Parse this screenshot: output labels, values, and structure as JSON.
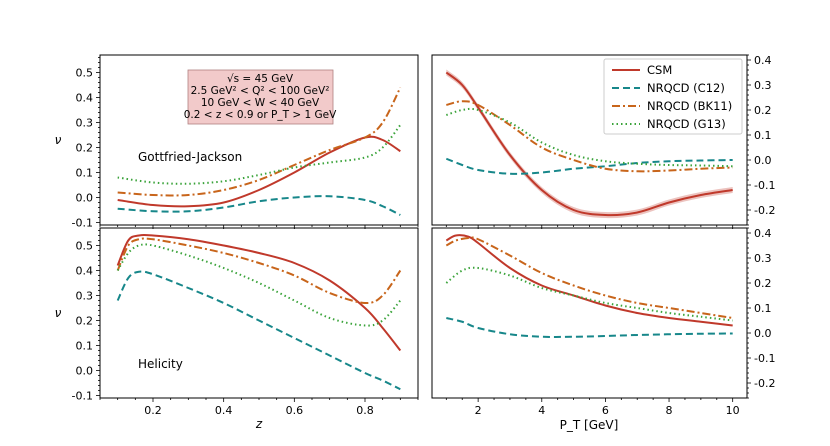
{
  "chart_data": {
    "type": "line",
    "legend": {
      "placement": "top-right",
      "entries": [
        "CSM",
        "NRQCD (C12)",
        "NRQCD (BK11)",
        "NRQCD (G13)"
      ]
    },
    "series_styles": [
      {
        "name": "CSM",
        "color": "#c0392b",
        "dash": "solid"
      },
      {
        "name": "NRQCD (C12)",
        "color": "#17878a",
        "dash": "dashed"
      },
      {
        "name": "NRQCD (BK11)",
        "color": "#c8651b",
        "dash": "dashdot"
      },
      {
        "name": "NRQCD (G13)",
        "color": "#3aa33a",
        "dash": "dotted"
      }
    ],
    "kinematics_box": {
      "lines": [
        "√s = 45 GeV",
        "2.5 GeV² < Q² < 100 GeV²",
        "10 GeV < W < 40 GeV",
        "0.2 < z < 0.9 or P_T > 1 GeV"
      ],
      "background": "#f2caca"
    },
    "panels": [
      {
        "id": "top-left",
        "frame": "Gottfried-Jackson",
        "annotation": "Gottfried-Jackson",
        "xlabel": "",
        "ylabel": "ν",
        "xlim": [
          0.05,
          0.95
        ],
        "ylim": [
          -0.11,
          0.57
        ],
        "xticks": [],
        "yticks": [
          "0.5",
          "0.4",
          "0.3",
          "0.2",
          "0.1",
          "0.0",
          "-0.1"
        ],
        "series": [
          {
            "name": "CSM",
            "x": [
              0.1,
              0.2,
              0.3,
              0.4,
              0.5,
              0.6,
              0.7,
              0.8,
              0.85,
              0.9
            ],
            "y": [
              -0.01,
              -0.03,
              -0.035,
              -0.02,
              0.03,
              0.1,
              0.18,
              0.24,
              0.23,
              0.185
            ]
          },
          {
            "name": "NRQCD (C12)",
            "x": [
              0.1,
              0.2,
              0.3,
              0.4,
              0.5,
              0.6,
              0.7,
              0.8,
              0.85,
              0.9
            ],
            "y": [
              -0.045,
              -0.055,
              -0.055,
              -0.04,
              -0.015,
              0.0,
              0.005,
              -0.01,
              -0.035,
              -0.07
            ]
          },
          {
            "name": "NRQCD (BK11)",
            "x": [
              0.1,
              0.2,
              0.3,
              0.4,
              0.5,
              0.6,
              0.7,
              0.8,
              0.85,
              0.9
            ],
            "y": [
              0.02,
              0.01,
              0.01,
              0.03,
              0.07,
              0.13,
              0.19,
              0.24,
              0.3,
              0.44
            ]
          },
          {
            "name": "NRQCD (G13)",
            "x": [
              0.1,
              0.2,
              0.3,
              0.4,
              0.5,
              0.6,
              0.7,
              0.8,
              0.85,
              0.9
            ],
            "y": [
              0.08,
              0.06,
              0.055,
              0.065,
              0.09,
              0.12,
              0.14,
              0.16,
              0.2,
              0.29
            ]
          }
        ]
      },
      {
        "id": "top-right",
        "frame": "Gottfried-Jackson",
        "xlabel": "",
        "ylabel": "",
        "xlim": [
          0.55,
          10.45
        ],
        "ylim": [
          -0.26,
          0.42
        ],
        "xticks": [],
        "yticks": [
          "0.4",
          "0.3",
          "0.2",
          "0.1",
          "0.0",
          "-0.1",
          "-0.2"
        ],
        "series": [
          {
            "name": "CSM",
            "x": [
              1,
              1.5,
              2,
              3,
              4,
              5,
              6,
              7,
              8,
              9,
              10
            ],
            "y": [
              0.35,
              0.3,
              0.21,
              0.02,
              -0.12,
              -0.2,
              -0.22,
              -0.21,
              -0.17,
              -0.14,
              -0.12
            ]
          },
          {
            "name": "NRQCD (C12)",
            "x": [
              1,
              1.5,
              2,
              3,
              4,
              5,
              6,
              7,
              8,
              9,
              10
            ],
            "y": [
              0.005,
              -0.02,
              -0.04,
              -0.055,
              -0.05,
              -0.035,
              -0.025,
              -0.012,
              -0.005,
              -0.002,
              0.0
            ]
          },
          {
            "name": "NRQCD (BK11)",
            "x": [
              1,
              1.5,
              2,
              3,
              4,
              5,
              6,
              7,
              8,
              9,
              10
            ],
            "y": [
              0.22,
              0.235,
              0.22,
              0.14,
              0.05,
              0.0,
              -0.035,
              -0.045,
              -0.042,
              -0.035,
              -0.03
            ]
          },
          {
            "name": "NRQCD (G13)",
            "x": [
              1,
              1.5,
              2,
              3,
              4,
              5,
              6,
              7,
              8,
              9,
              10
            ],
            "y": [
              0.18,
              0.2,
              0.2,
              0.15,
              0.07,
              0.02,
              -0.005,
              -0.015,
              -0.02,
              -0.022,
              -0.025
            ]
          }
        ]
      },
      {
        "id": "bottom-left",
        "frame": "Helicity",
        "annotation": "Helicity",
        "xlabel": "z",
        "ylabel": "ν",
        "xlim": [
          0.05,
          0.95
        ],
        "ylim": [
          -0.11,
          0.57
        ],
        "xticks": [
          "0.2",
          "0.4",
          "0.6",
          "0.8"
        ],
        "yticks": [
          "0.5",
          "0.4",
          "0.3",
          "0.2",
          "0.1",
          "0.0",
          "-0.1"
        ],
        "series": [
          {
            "name": "CSM",
            "x": [
              0.1,
              0.13,
              0.16,
              0.2,
              0.3,
              0.4,
              0.5,
              0.6,
              0.7,
              0.8,
              0.85,
              0.9
            ],
            "y": [
              0.42,
              0.52,
              0.54,
              0.54,
              0.525,
              0.5,
              0.47,
              0.43,
              0.36,
              0.25,
              0.17,
              0.08
            ]
          },
          {
            "name": "NRQCD (C12)",
            "x": [
              0.1,
              0.13,
              0.16,
              0.2,
              0.3,
              0.4,
              0.5,
              0.6,
              0.7,
              0.8,
              0.85,
              0.9
            ],
            "y": [
              0.28,
              0.37,
              0.395,
              0.385,
              0.33,
              0.27,
              0.2,
              0.13,
              0.06,
              -0.01,
              -0.04,
              -0.075
            ]
          },
          {
            "name": "NRQCD (BK11)",
            "x": [
              0.1,
              0.13,
              0.16,
              0.2,
              0.3,
              0.4,
              0.5,
              0.6,
              0.7,
              0.8,
              0.85,
              0.9
            ],
            "y": [
              0.4,
              0.5,
              0.525,
              0.525,
              0.5,
              0.47,
              0.43,
              0.38,
              0.31,
              0.27,
              0.3,
              0.4
            ]
          },
          {
            "name": "NRQCD (G13)",
            "x": [
              0.1,
              0.13,
              0.16,
              0.2,
              0.3,
              0.4,
              0.5,
              0.6,
              0.7,
              0.8,
              0.85,
              0.9
            ],
            "y": [
              0.4,
              0.47,
              0.5,
              0.5,
              0.46,
              0.41,
              0.35,
              0.28,
              0.21,
              0.18,
              0.2,
              0.28
            ]
          }
        ]
      },
      {
        "id": "bottom-right",
        "frame": "Helicity",
        "xlabel": "P_T [GeV]",
        "ylabel": "",
        "xlim": [
          0.55,
          10.45
        ],
        "ylim": [
          -0.26,
          0.42
        ],
        "xticks": [
          "2",
          "4",
          "6",
          "8",
          "10"
        ],
        "yticks": [
          "0.4",
          "0.3",
          "0.2",
          "0.1",
          "0.0",
          "-0.1",
          "-0.2"
        ],
        "series": [
          {
            "name": "CSM",
            "x": [
              1,
              1.3,
              1.7,
              2,
              3,
              4,
              5,
              6,
              7,
              8,
              9,
              10
            ],
            "y": [
              0.37,
              0.39,
              0.385,
              0.36,
              0.26,
              0.19,
              0.15,
              0.11,
              0.08,
              0.06,
              0.045,
              0.03
            ]
          },
          {
            "name": "NRQCD (C12)",
            "x": [
              1,
              1.5,
              2,
              3,
              4,
              5,
              6,
              7,
              8,
              9,
              10
            ],
            "y": [
              0.06,
              0.045,
              0.02,
              -0.005,
              -0.015,
              -0.015,
              -0.012,
              -0.008,
              -0.005,
              -0.003,
              -0.002
            ]
          },
          {
            "name": "NRQCD (BK11)",
            "x": [
              1,
              1.3,
              1.7,
              2,
              3,
              4,
              5,
              6,
              7,
              8,
              9,
              10
            ],
            "y": [
              0.35,
              0.37,
              0.38,
              0.375,
              0.31,
              0.24,
              0.19,
              0.15,
              0.12,
              0.1,
              0.08,
              0.06
            ]
          },
          {
            "name": "NRQCD (G13)",
            "x": [
              1,
              1.5,
              2,
              3,
              4,
              5,
              6,
              7,
              8,
              9,
              10
            ],
            "y": [
              0.2,
              0.25,
              0.26,
              0.23,
              0.18,
              0.15,
              0.12,
              0.1,
              0.08,
              0.065,
              0.05
            ]
          }
        ]
      }
    ]
  }
}
